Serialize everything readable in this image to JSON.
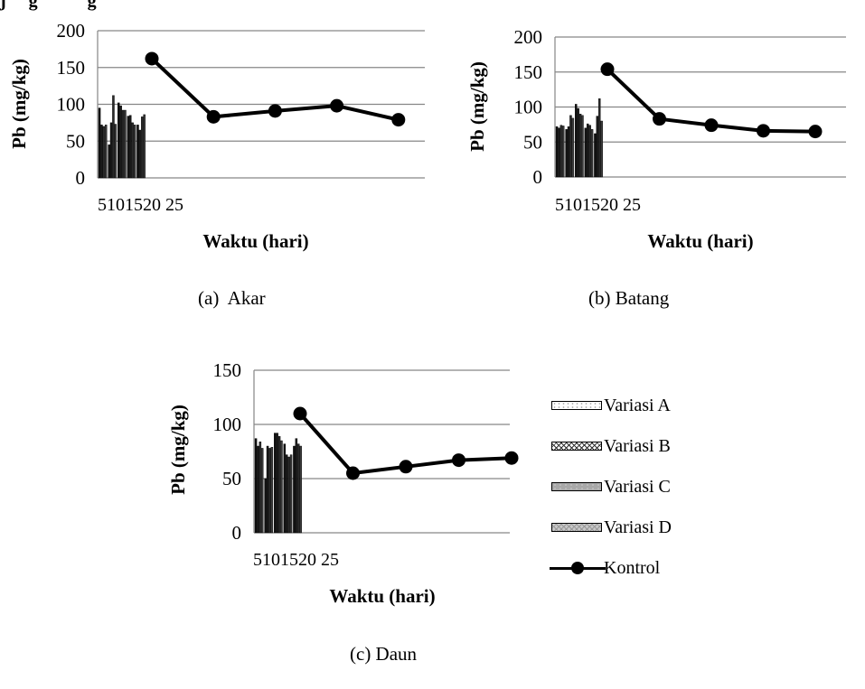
{
  "header_fragment": "j     g           g",
  "captions": {
    "akar": "(a)  Akar",
    "batang": "(b) Batang",
    "daun": "(c) Daun"
  },
  "legend": {
    "items": [
      {
        "label": "Variasi A",
        "key": "A"
      },
      {
        "label": "Variasi B",
        "key": "B"
      },
      {
        "label": "Variasi C",
        "key": "C"
      },
      {
        "label": "Variasi D",
        "key": "D"
      },
      {
        "label": "Kontrol",
        "key": "K"
      }
    ]
  },
  "colors": {
    "line": "#000000",
    "gridline": "#868686",
    "bar_dark": "#000000"
  },
  "chart_data": [
    {
      "id": "akar",
      "type": "bar",
      "xlabel": "Waktu (hari)",
      "ylabel": "Pb (mg/kg)",
      "ylim": [
        0,
        200
      ],
      "yticks": [
        0,
        50,
        100,
        150,
        200
      ],
      "categories": [
        "5",
        "10",
        "15",
        "20",
        "25"
      ],
      "x_tick_text": "5101520 25",
      "series": [
        {
          "name": "Variasi A",
          "type": "bar",
          "values": [
            95,
            45,
            102,
            84,
            72
          ]
        },
        {
          "name": "Variasi B",
          "type": "bar",
          "values": [
            72,
            75,
            98,
            85,
            65
          ]
        },
        {
          "name": "Variasi C",
          "type": "bar",
          "values": [
            70,
            112,
            92,
            75,
            83
          ]
        },
        {
          "name": "Variasi D",
          "type": "bar",
          "values": [
            72,
            73,
            92,
            72,
            86
          ]
        },
        {
          "name": "Kontrol",
          "type": "line",
          "values": [
            162,
            83,
            91,
            98,
            79
          ]
        }
      ]
    },
    {
      "id": "batang",
      "type": "bar",
      "xlabel": "Waktu (hari)",
      "ylabel": "Pb (mg/kg)",
      "ylim": [
        0,
        200
      ],
      "yticks": [
        0,
        50,
        100,
        150,
        200
      ],
      "categories": [
        "5",
        "10",
        "15",
        "20",
        "25"
      ],
      "x_tick_text": "5101520 25",
      "series": [
        {
          "name": "Variasi A",
          "type": "bar",
          "values": [
            72,
            68,
            104,
            70,
            62
          ]
        },
        {
          "name": "Variasi B",
          "type": "bar",
          "values": [
            70,
            72,
            98,
            76,
            87
          ]
        },
        {
          "name": "Variasi C",
          "type": "bar",
          "values": [
            74,
            88,
            90,
            74,
            112
          ]
        },
        {
          "name": "Variasi D",
          "type": "bar",
          "values": [
            73,
            84,
            88,
            68,
            80
          ]
        },
        {
          "name": "Kontrol",
          "type": "line",
          "values": [
            154,
            83,
            74,
            66,
            65
          ]
        }
      ]
    },
    {
      "id": "daun",
      "type": "bar",
      "xlabel": "Waktu (hari)",
      "ylabel": "Pb (mg/kg)",
      "ylim": [
        0,
        150
      ],
      "yticks": [
        0,
        50,
        100,
        150
      ],
      "categories": [
        "5",
        "10",
        "15",
        "20",
        "25"
      ],
      "x_tick_text": "5101520 25",
      "series": [
        {
          "name": "Variasi A",
          "type": "bar",
          "values": [
            87,
            50,
            92,
            82,
            80
          ]
        },
        {
          "name": "Variasi B",
          "type": "bar",
          "values": [
            80,
            80,
            92,
            72,
            87
          ]
        },
        {
          "name": "Variasi C",
          "type": "bar",
          "values": [
            84,
            78,
            89,
            70,
            82
          ]
        },
        {
          "name": "Variasi D",
          "type": "bar",
          "values": [
            78,
            79,
            85,
            72,
            80
          ]
        },
        {
          "name": "Kontrol",
          "type": "line",
          "values": [
            110,
            55,
            61,
            67,
            69
          ]
        }
      ]
    }
  ]
}
